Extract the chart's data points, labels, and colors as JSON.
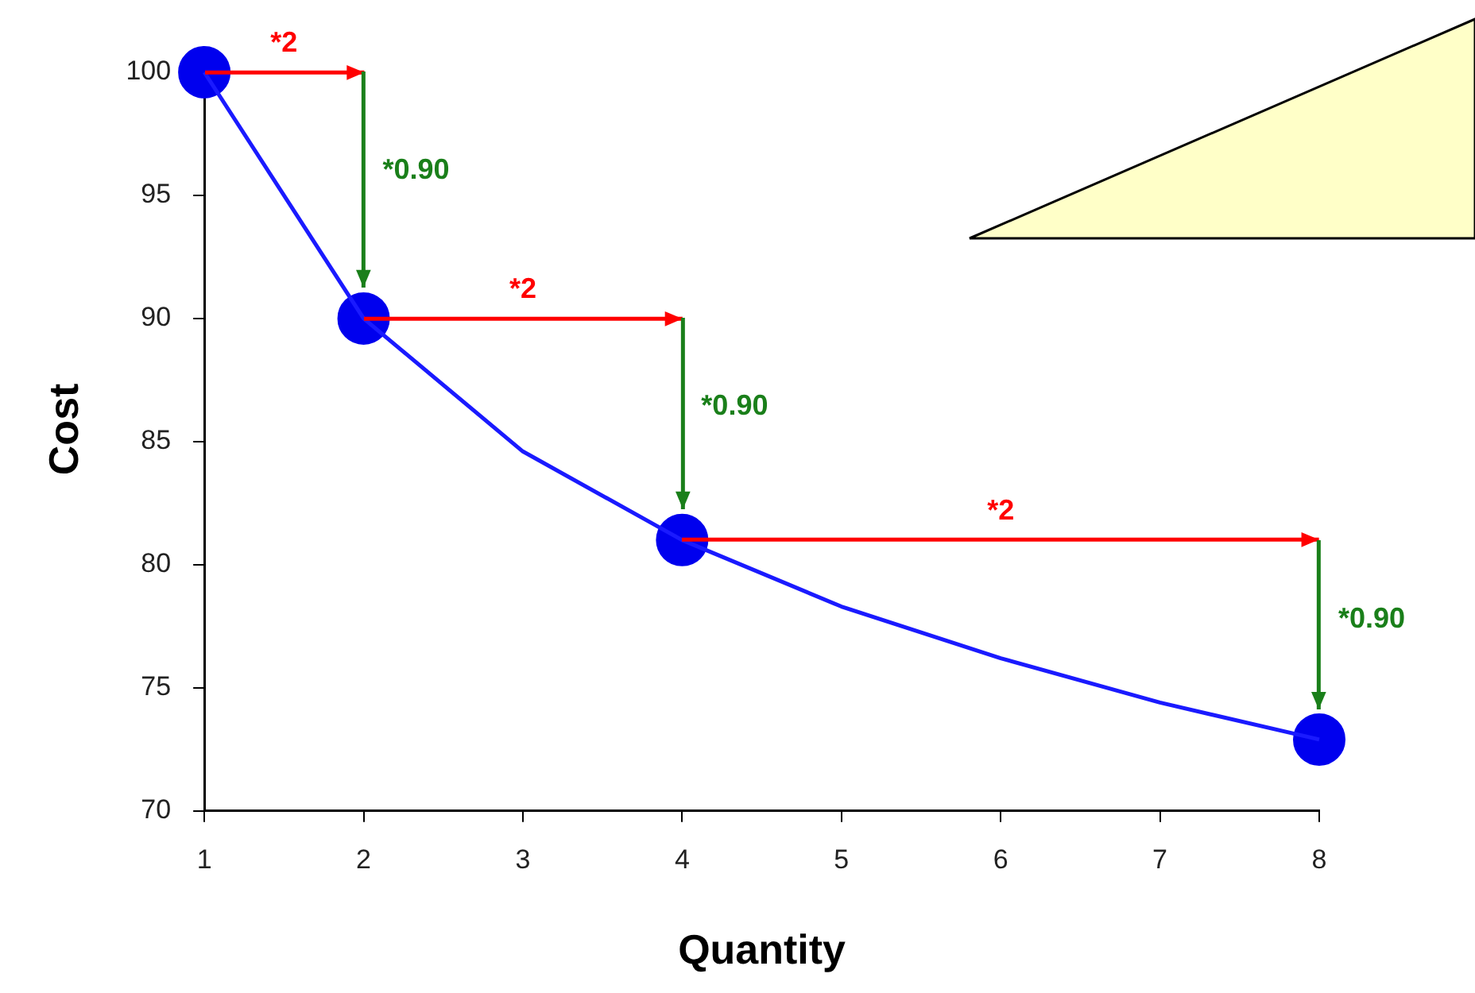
{
  "chart_data": {
    "type": "line",
    "xlabel": "Quantity",
    "ylabel": "Cost",
    "xlim": [
      1,
      8
    ],
    "xticks": [
      1,
      2,
      3,
      4,
      5,
      6,
      7,
      8
    ],
    "ylim": [
      70,
      101
    ],
    "yticks": [
      70,
      75,
      80,
      85,
      90,
      95,
      100
    ],
    "grid": false,
    "legend": false,
    "series": [
      {
        "x": [
          1,
          2,
          3,
          4,
          5,
          6,
          7,
          8
        ],
        "values": [
          100,
          90,
          84.6,
          81,
          78.3,
          76.2,
          74.4,
          72.9
        ],
        "color": "#1a1aff",
        "marker": "none"
      },
      {
        "type": "scatter",
        "x": [
          1,
          2,
          4,
          8
        ],
        "values": [
          100,
          90,
          81,
          72.9
        ],
        "color": "#0000ee",
        "marker": "circle"
      }
    ],
    "annotations": [
      "*2",
      "*0.90",
      "*2",
      "*0.90",
      "*2",
      "*0.90"
    ]
  }
}
